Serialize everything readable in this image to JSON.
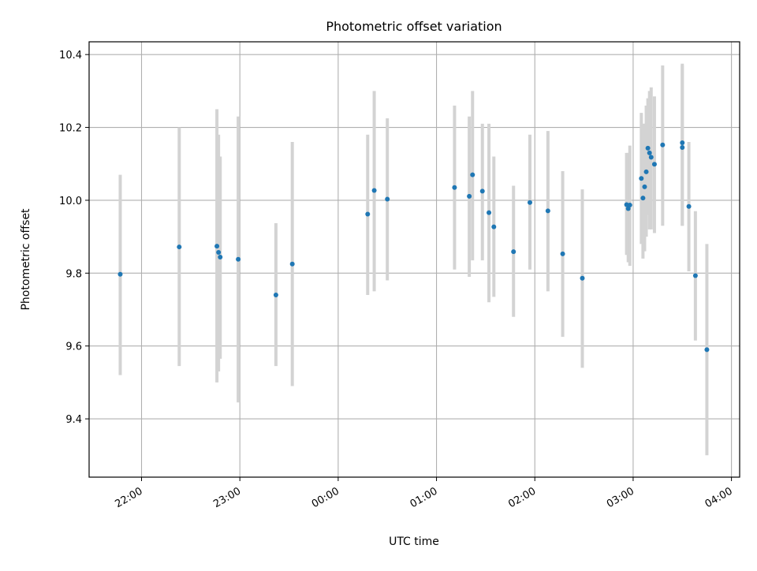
{
  "chart_data": {
    "type": "scatter",
    "title": "Photometric offset variation",
    "xlabel": "UTC time",
    "ylabel": "Photometric offset",
    "x_axis_kind": "time (HH:MM, crosses midnight)",
    "xlim": [
      "21:28",
      "04:05"
    ],
    "ylim": [
      9.24,
      10.435
    ],
    "x_ticks": [
      "22:00",
      "23:00",
      "00:00",
      "01:00",
      "02:00",
      "03:00",
      "04:00"
    ],
    "y_ticks": [
      "9.4",
      "9.6",
      "9.8",
      "10.0",
      "10.2",
      "10.4"
    ],
    "grid": true,
    "marker_color": "#1f77b4",
    "errorbar_color": "#d3d3d3",
    "points": [
      {
        "time": "21:47",
        "y": 9.797,
        "y_low": 9.52,
        "y_high": 10.07
      },
      {
        "time": "22:23",
        "y": 9.872,
        "y_low": 9.545,
        "y_high": 10.2
      },
      {
        "time": "22:46",
        "y": 9.874,
        "y_low": 9.5,
        "y_high": 10.25
      },
      {
        "time": "22:47",
        "y": 9.857,
        "y_low": 9.53,
        "y_high": 10.18
      },
      {
        "time": "22:48",
        "y": 9.844,
        "y_low": 9.565,
        "y_high": 10.12
      },
      {
        "time": "22:59",
        "y": 9.838,
        "y_low": 9.445,
        "y_high": 10.23
      },
      {
        "time": "23:22",
        "y": 9.74,
        "y_low": 9.545,
        "y_high": 9.937
      },
      {
        "time": "23:32",
        "y": 9.825,
        "y_low": 9.49,
        "y_high": 10.16
      },
      {
        "time": "00:18",
        "y": 9.962,
        "y_low": 9.74,
        "y_high": 10.18
      },
      {
        "time": "00:22",
        "y": 10.027,
        "y_low": 9.75,
        "y_high": 10.3
      },
      {
        "time": "00:30",
        "y": 10.003,
        "y_low": 9.78,
        "y_high": 10.225
      },
      {
        "time": "01:11",
        "y": 10.035,
        "y_low": 9.81,
        "y_high": 10.26
      },
      {
        "time": "01:20",
        "y": 10.011,
        "y_low": 9.79,
        "y_high": 10.23
      },
      {
        "time": "01:22",
        "y": 10.07,
        "y_low": 9.835,
        "y_high": 10.3
      },
      {
        "time": "01:28",
        "y": 10.025,
        "y_low": 9.835,
        "y_high": 10.21
      },
      {
        "time": "01:32",
        "y": 9.966,
        "y_low": 9.72,
        "y_high": 10.21
      },
      {
        "time": "01:35",
        "y": 9.927,
        "y_low": 9.735,
        "y_high": 10.12
      },
      {
        "time": "01:47",
        "y": 9.859,
        "y_low": 9.68,
        "y_high": 10.04
      },
      {
        "time": "01:57",
        "y": 9.994,
        "y_low": 9.81,
        "y_high": 10.18
      },
      {
        "time": "02:08",
        "y": 9.971,
        "y_low": 9.75,
        "y_high": 10.19
      },
      {
        "time": "02:17",
        "y": 9.853,
        "y_low": 9.625,
        "y_high": 10.08
      },
      {
        "time": "02:29",
        "y": 9.786,
        "y_low": 9.54,
        "y_high": 10.03
      },
      {
        "time": "02:56",
        "y": 9.988,
        "y_low": 9.85,
        "y_high": 10.13
      },
      {
        "time": "02:57",
        "y": 9.977,
        "y_low": 9.83,
        "y_high": 10.13
      },
      {
        "time": "02:58",
        "y": 9.987,
        "y_low": 9.82,
        "y_high": 10.15
      },
      {
        "time": "03:05",
        "y": 10.06,
        "y_low": 9.88,
        "y_high": 10.24
      },
      {
        "time": "03:06",
        "y": 10.006,
        "y_low": 9.84,
        "y_high": 10.21
      },
      {
        "time": "03:07",
        "y": 10.037,
        "y_low": 9.86,
        "y_high": 10.21
      },
      {
        "time": "03:08",
        "y": 10.078,
        "y_low": 9.9,
        "y_high": 10.26
      },
      {
        "time": "03:09",
        "y": 10.143,
        "y_low": 9.96,
        "y_high": 10.28
      },
      {
        "time": "03:10",
        "y": 10.13,
        "y_low": 9.92,
        "y_high": 10.3
      },
      {
        "time": "03:11",
        "y": 10.118,
        "y_low": 9.92,
        "y_high": 10.31
      },
      {
        "time": "03:13",
        "y": 10.099,
        "y_low": 9.91,
        "y_high": 10.285
      },
      {
        "time": "03:18",
        "y": 10.152,
        "y_low": 9.93,
        "y_high": 10.37
      },
      {
        "time": "03:30",
        "y": 10.158,
        "y_low": 9.93,
        "y_high": 10.375
      },
      {
        "time": "03:30",
        "y": 10.145,
        "y_low": 9.93,
        "y_high": 10.37
      },
      {
        "time": "03:34",
        "y": 9.983,
        "y_low": 9.805,
        "y_high": 10.16
      },
      {
        "time": "03:38",
        "y": 9.793,
        "y_low": 9.615,
        "y_high": 9.97
      },
      {
        "time": "03:45",
        "y": 9.59,
        "y_low": 9.3,
        "y_high": 9.88
      }
    ]
  }
}
